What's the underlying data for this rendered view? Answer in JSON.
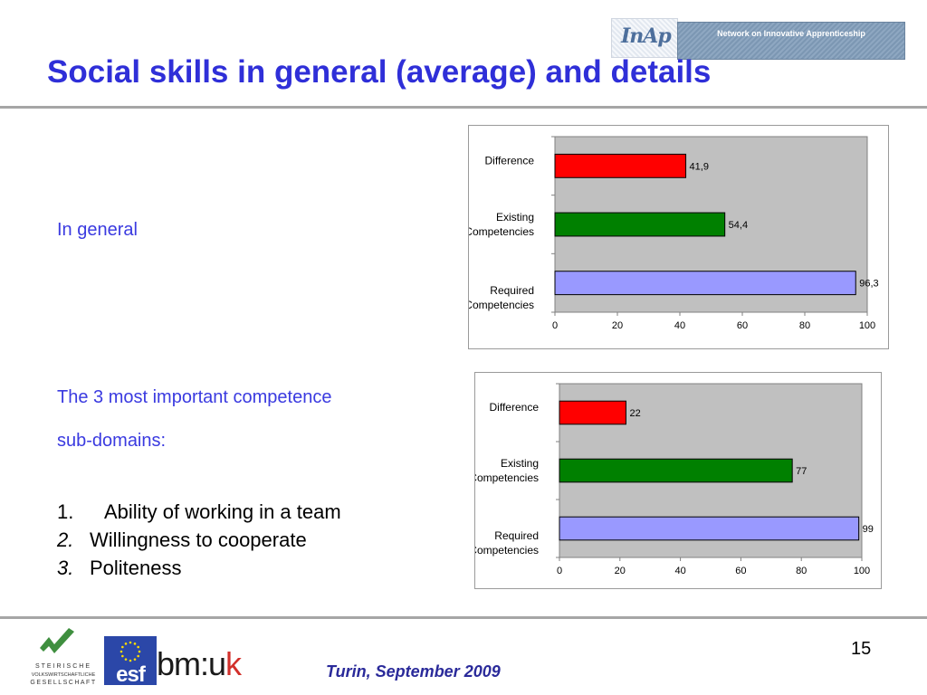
{
  "slide": {
    "title": "Social skills in general  (average) and details",
    "in_general_label": "In general",
    "competence_intro_line1": "The 3 most important competence",
    "competence_intro_line2": "sub-domains:",
    "list": [
      {
        "num": "1.",
        "text": "Ability of working in a team",
        "italic": false
      },
      {
        "num": "2.",
        "text": "Willingness to cooperate",
        "italic": true
      },
      {
        "num": "3.",
        "text": "Politeness",
        "italic": true
      }
    ],
    "footer_date": "Turin, September 2009",
    "page_number": "15"
  },
  "logos": {
    "inap_logo_text": "InAp",
    "inap_banner_text": "Network on Innovative Apprenticeship",
    "steirische_lines": [
      "STEIRISCHE",
      "VOLKSWIRTSCHAFTLICHE",
      "GESELLSCHAFT"
    ],
    "esf_text": "esf",
    "bmuk_text": "bm:uk"
  },
  "chart_data": [
    {
      "type": "bar",
      "orientation": "horizontal",
      "categories": [
        "Difference",
        "Existing Competencies",
        "Required Competencies"
      ],
      "values": [
        41.9,
        54.4,
        96.3
      ],
      "value_labels": [
        "41,9",
        "54,4",
        "96,3"
      ],
      "colors": [
        "#ff0000",
        "#008000",
        "#9999ff"
      ],
      "xlim": [
        0,
        100
      ],
      "xticks": [
        "0",
        "20",
        "40",
        "60",
        "80",
        "100"
      ],
      "plot_background": "#c0c0c0",
      "grid": false,
      "legend": "none"
    },
    {
      "type": "bar",
      "orientation": "horizontal",
      "categories": [
        "Difference",
        "Existing Competencies",
        "Required Competencies"
      ],
      "values": [
        22,
        77,
        99
      ],
      "value_labels": [
        "22",
        "77",
        "99"
      ],
      "colors": [
        "#ff0000",
        "#008000",
        "#9999ff"
      ],
      "xlim": [
        0,
        100
      ],
      "xticks": [
        "0",
        "20",
        "40",
        "60",
        "80",
        "100"
      ],
      "plot_background": "#c0c0c0",
      "grid": false,
      "legend": "none"
    }
  ]
}
